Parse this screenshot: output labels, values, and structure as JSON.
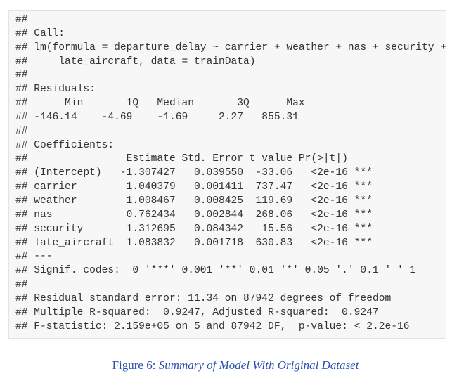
{
  "output_lines": [
    "##",
    "## Call:",
    "## lm(formula = departure_delay ~ carrier + weather + nas + security +",
    "##     late_aircraft, data = trainData)",
    "##",
    "## Residuals:",
    "##      Min       1Q   Median       3Q      Max",
    "## -146.14    -4.69    -1.69     2.27   855.31",
    "##",
    "## Coefficients:",
    "##                Estimate Std. Error t value Pr(>|t|)",
    "## (Intercept)   -1.307427   0.039550  -33.06   <2e-16 ***",
    "## carrier        1.040379   0.001411  737.47   <2e-16 ***",
    "## weather        1.008467   0.008425  119.69   <2e-16 ***",
    "## nas            0.762434   0.002844  268.06   <2e-16 ***",
    "## security       1.312695   0.084342   15.56   <2e-16 ***",
    "## late_aircraft  1.083832   0.001718  630.83   <2e-16 ***",
    "## ---",
    "## Signif. codes:  0 '***' 0.001 '**' 0.01 '*' 0.05 '.' 0.1 ' ' 1",
    "##",
    "## Residual standard error: 11.34 on 87942 degrees of freedom",
    "## Multiple R-squared:  0.9247, Adjusted R-squared:  0.9247",
    "## F-statistic: 2.159e+05 on 5 and 87942 DF,  p-value: < 2.2e-16"
  ],
  "caption": {
    "label": "Figure 6:",
    "text": "Summary of Model With Original Dataset"
  }
}
